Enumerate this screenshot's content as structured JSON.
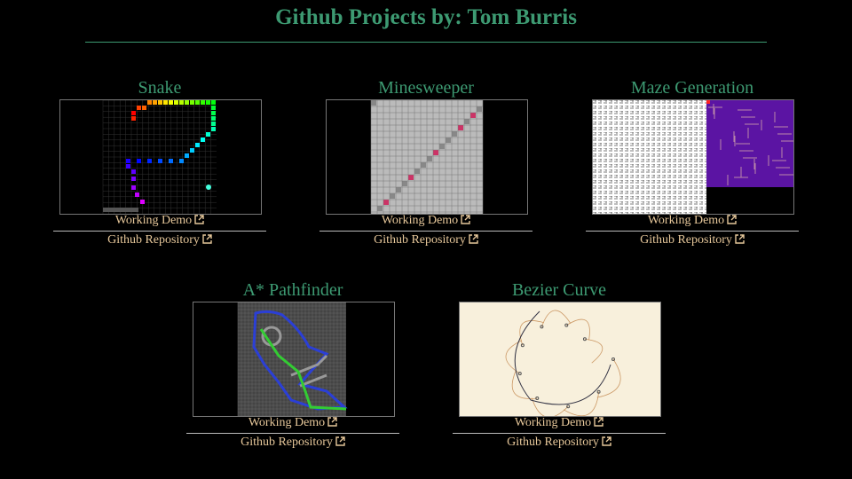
{
  "header": {
    "title": "Github Projects by: Tom Burris"
  },
  "projects": [
    {
      "name": "Snake",
      "demo": "Working Demo",
      "repo": "Github Repository"
    },
    {
      "name": "Minesweeper",
      "demo": "Working Demo",
      "repo": "Github Repository"
    },
    {
      "name": "Maze Generation",
      "demo": "Working Demo",
      "repo": "Github Repository"
    },
    {
      "name": "A* Pathfinder",
      "demo": "Working Demo",
      "repo": "Github Repository"
    },
    {
      "name": "Bezier Curve",
      "demo": "Working Demo",
      "repo": "Github Repository"
    }
  ]
}
